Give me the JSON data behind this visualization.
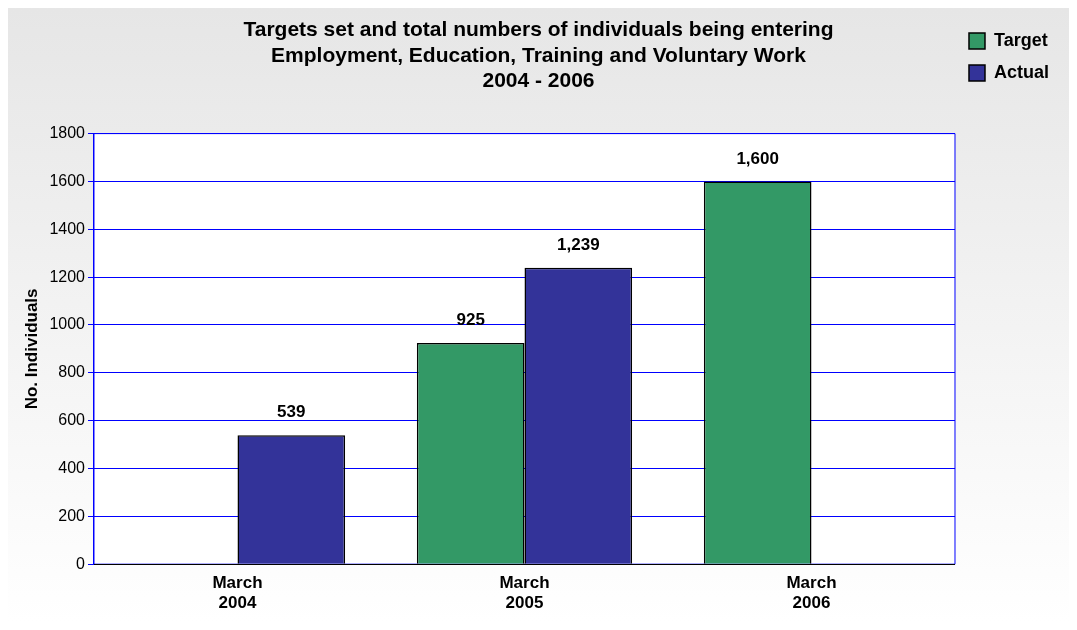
{
  "chart_data": {
    "type": "bar",
    "title": "Targets set and total numbers of individuals being entering\nEmployment, Education, Training and Voluntary Work\n2004 - 2006",
    "ylabel": "No. Individuals",
    "categories": [
      "March\n2004",
      "March\n2005",
      "March\n2006"
    ],
    "series": [
      {
        "name": "Target",
        "color": "#339966",
        "values": [
          null,
          925,
          1600
        ],
        "value_labels": [
          null,
          "925",
          "1,600"
        ]
      },
      {
        "name": "Actual",
        "color": "#333399",
        "values": [
          539,
          1239,
          null
        ],
        "value_labels": [
          "539",
          "1,239",
          null
        ]
      }
    ],
    "ylim": [
      0,
      1800
    ],
    "yticks": [
      0,
      200,
      400,
      600,
      800,
      1000,
      1200,
      1400,
      1600,
      1800
    ],
    "grid": "y",
    "legend": "top right"
  }
}
